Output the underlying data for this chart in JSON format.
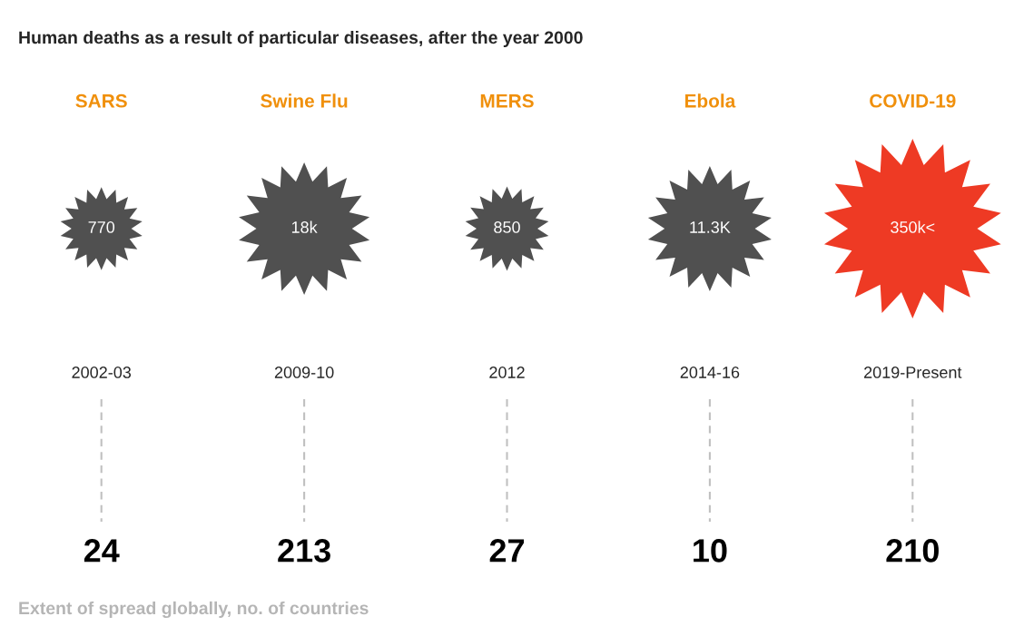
{
  "chart_data": {
    "type": "other",
    "title": "Human deaths as a result of particular diseases, after the year 2000",
    "categories": [
      "SARS",
      "Swine Flu",
      "MERS",
      "Ebola",
      "COVID-19"
    ],
    "series": [
      {
        "values": [
          770,
          18000,
          850,
          11300,
          350000
        ],
        "value_labels": [
          "770",
          "18k",
          "850",
          "11.3K",
          "350k<"
        ],
        "colors": [
          "#505050",
          "#505050",
          "#505050",
          "#505050",
          "#ee3a24"
        ]
      },
      {
        "values": [
          24,
          213,
          27,
          10,
          210
        ],
        "color": "#000000"
      }
    ],
    "data_labels": true,
    "annotations": [
      {
        "text": "2002-03",
        "x": "SARS"
      },
      {
        "text": "2009-10",
        "x": "Swine Flu"
      },
      {
        "text": "2012",
        "x": "MERS"
      },
      {
        "text": "2014-16",
        "x": "Ebola"
      },
      {
        "text": "2019-Present",
        "x": "COVID-19"
      },
      "Extent of spread globally, no. of countries"
    ]
  }
}
